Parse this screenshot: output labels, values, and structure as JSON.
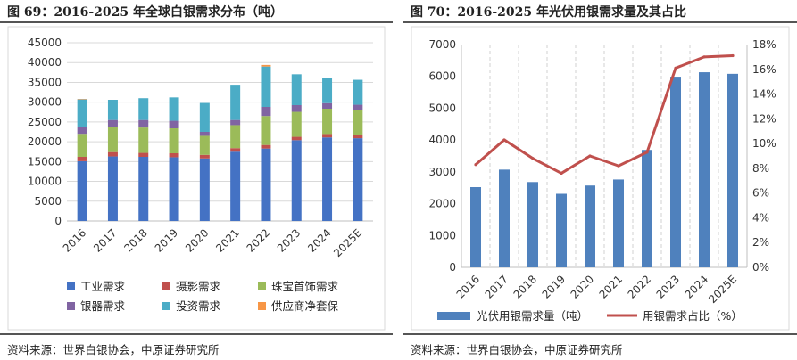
{
  "chart_data": [
    {
      "type": "bar",
      "stacked": true,
      "title": "图 69：2016-2025 年全球白银需求分布（吨）",
      "categories": [
        "2016",
        "2017",
        "2018",
        "2019",
        "2020",
        "2021",
        "2022",
        "2023",
        "2024",
        "2025E"
      ],
      "ylim": [
        0,
        45000
      ],
      "yticks": [
        0,
        5000,
        10000,
        15000,
        20000,
        25000,
        30000,
        35000,
        40000,
        45000
      ],
      "grid": true,
      "legend_position": "bottom",
      "series": [
        {
          "name": "工业需求",
          "color": "#4472C4",
          "values": [
            15100,
            16300,
            16200,
            16100,
            15800,
            17500,
            18300,
            20400,
            21100,
            20900
          ]
        },
        {
          "name": "摄影需求",
          "color": "#C0504D",
          "values": [
            1100,
            1100,
            1000,
            1000,
            900,
            900,
            900,
            850,
            850,
            850
          ]
        },
        {
          "name": "珠宝首饰需求",
          "color": "#9BBB59",
          "values": [
            5800,
            6300,
            6400,
            6300,
            4800,
            5800,
            7300,
            6300,
            6400,
            6200
          ]
        },
        {
          "name": "银器需求",
          "color": "#8064A2",
          "values": [
            1800,
            1800,
            1900,
            1900,
            1000,
            1300,
            2300,
            1700,
            1400,
            1400
          ]
        },
        {
          "name": "投资需求",
          "color": "#4BACC6",
          "values": [
            6900,
            5100,
            5500,
            5900,
            7300,
            8900,
            10200,
            7800,
            6300,
            6300
          ]
        },
        {
          "name": "供应商净套保",
          "color": "#F79646",
          "values": [
            100,
            0,
            0,
            0,
            0,
            0,
            400,
            0,
            100,
            0
          ]
        }
      ]
    },
    {
      "type": "bar+line",
      "title": "图 70：2016-2025 年光伏用银需求量及其占比",
      "categories": [
        "2016",
        "2017",
        "2018",
        "2019",
        "2020",
        "2021",
        "2022",
        "2023",
        "2024",
        "2025E"
      ],
      "ylim": [
        0,
        7000
      ],
      "yticks": [
        0,
        1000,
        2000,
        3000,
        4000,
        5000,
        6000,
        7000
      ],
      "y2lim": [
        0,
        18
      ],
      "y2ticks": [
        "0%",
        "2%",
        "4%",
        "6%",
        "8%",
        "10%",
        "12%",
        "14%",
        "16%",
        "18%"
      ],
      "grid": true,
      "legend_position": "bottom",
      "series": [
        {
          "name": "光伏用银需求量（吨）",
          "kind": "bar",
          "axis": "left",
          "color": "#4F81BD",
          "values": [
            2520,
            3070,
            2680,
            2310,
            2570,
            2760,
            3690,
            5990,
            6130,
            6080
          ]
        },
        {
          "name": "用银需求占比（%）",
          "kind": "line",
          "axis": "right",
          "color": "#C0504D",
          "values": [
            8.3,
            10.3,
            8.8,
            7.6,
            9.0,
            8.2,
            9.3,
            16.1,
            17.0,
            17.1
          ]
        }
      ]
    }
  ],
  "footer": {
    "left_source": "资料来源：世界白银协会，中原证券研究所",
    "right_source": "资料来源：世界白银协会，中原证券研究所"
  }
}
